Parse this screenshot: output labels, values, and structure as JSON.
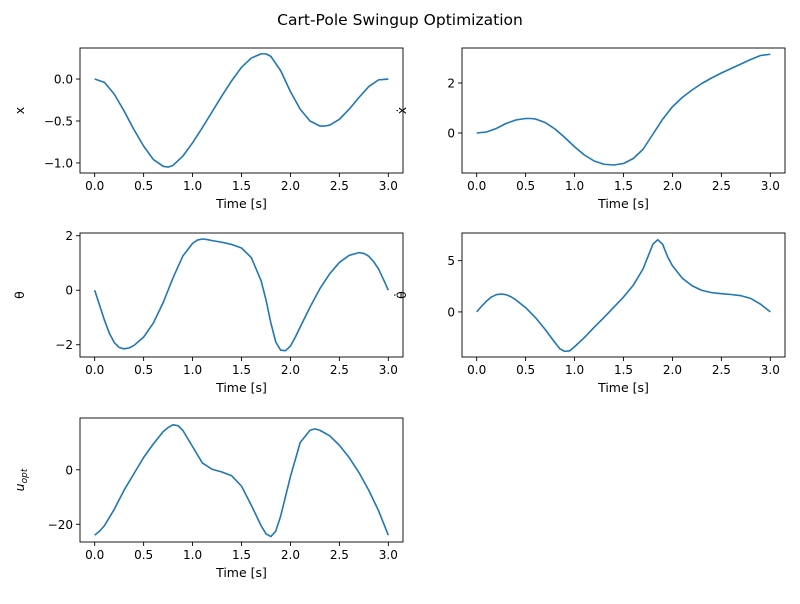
{
  "figure_title": "Cart-Pole Swingup Optimization",
  "colors": {
    "line": "#1f77b4",
    "axis": "#000000",
    "background": "#ffffff"
  },
  "chart_data": [
    {
      "id": "x",
      "type": "line",
      "title": "",
      "xlabel": "Time [s]",
      "ylabel": "x",
      "xlim": [
        -0.15,
        3.15
      ],
      "ylim": [
        -1.12,
        0.37
      ],
      "xticks": [
        0.0,
        0.5,
        1.0,
        1.5,
        2.0,
        2.5,
        3.0
      ],
      "xtick_labels": [
        "0.0",
        "0.5",
        "1.0",
        "1.5",
        "2.0",
        "2.5",
        "3.0"
      ],
      "yticks": [
        0.0,
        -0.5,
        -1.0
      ],
      "ytick_labels": [
        "0.0",
        "−0.5",
        "−1.0"
      ],
      "grid": false,
      "series": [
        {
          "x": [
            0.0,
            0.1,
            0.2,
            0.3,
            0.4,
            0.5,
            0.6,
            0.7,
            0.75,
            0.8,
            0.9,
            1.0,
            1.1,
            1.2,
            1.3,
            1.4,
            1.5,
            1.6,
            1.7,
            1.75,
            1.8,
            1.9,
            2.0,
            2.1,
            2.2,
            2.3,
            2.35,
            2.4,
            2.5,
            2.6,
            2.7,
            2.8,
            2.9,
            3.0
          ],
          "y": [
            0.0,
            -0.04,
            -0.18,
            -0.38,
            -0.6,
            -0.8,
            -0.96,
            -1.04,
            -1.05,
            -1.03,
            -0.92,
            -0.76,
            -0.58,
            -0.39,
            -0.2,
            -0.02,
            0.14,
            0.25,
            0.3,
            0.3,
            0.27,
            0.1,
            -0.15,
            -0.36,
            -0.5,
            -0.56,
            -0.56,
            -0.55,
            -0.48,
            -0.36,
            -0.22,
            -0.09,
            -0.01,
            0.0
          ]
        }
      ]
    },
    {
      "id": "xdot",
      "type": "line",
      "title": "",
      "xlabel": "Time [s]",
      "ylabel": "ẋ",
      "xlim": [
        -0.15,
        3.15
      ],
      "ylim": [
        -1.6,
        3.4
      ],
      "xticks": [
        0.0,
        0.5,
        1.0,
        1.5,
        2.0,
        2.5,
        3.0
      ],
      "xtick_labels": [
        "0.0",
        "0.5",
        "1.0",
        "1.5",
        "2.0",
        "2.5",
        "3.0"
      ],
      "yticks": [
        0,
        2
      ],
      "ytick_labels": [
        "0",
        "2"
      ],
      "grid": false,
      "series": [
        {
          "x": [
            0.0,
            0.1,
            0.2,
            0.3,
            0.4,
            0.5,
            0.55,
            0.6,
            0.7,
            0.8,
            0.9,
            1.0,
            1.1,
            1.2,
            1.3,
            1.4,
            1.5,
            1.6,
            1.7,
            1.8,
            1.9,
            2.0,
            2.1,
            2.2,
            2.3,
            2.4,
            2.5,
            2.6,
            2.7,
            2.8,
            2.9,
            3.0
          ],
          "y": [
            0.0,
            0.04,
            0.18,
            0.38,
            0.52,
            0.58,
            0.58,
            0.56,
            0.42,
            0.16,
            -0.18,
            -0.55,
            -0.88,
            -1.12,
            -1.25,
            -1.28,
            -1.22,
            -1.02,
            -0.65,
            -0.05,
            0.55,
            1.05,
            1.42,
            1.72,
            1.98,
            2.2,
            2.4,
            2.58,
            2.76,
            2.94,
            3.1,
            3.15
          ]
        }
      ]
    },
    {
      "id": "theta",
      "type": "line",
      "title": "",
      "xlabel": "Time [s]",
      "ylabel": "θ",
      "xlim": [
        -0.15,
        3.15
      ],
      "ylim": [
        -2.45,
        2.1
      ],
      "xticks": [
        0.0,
        0.5,
        1.0,
        1.5,
        2.0,
        2.5,
        3.0
      ],
      "xtick_labels": [
        "0.0",
        "0.5",
        "1.0",
        "1.5",
        "2.0",
        "2.5",
        "3.0"
      ],
      "yticks": [
        2,
        0,
        -2
      ],
      "ytick_labels": [
        "2",
        "0",
        "−2"
      ],
      "grid": false,
      "series": [
        {
          "x": [
            0.0,
            0.05,
            0.1,
            0.15,
            0.2,
            0.25,
            0.3,
            0.35,
            0.4,
            0.5,
            0.6,
            0.7,
            0.8,
            0.9,
            1.0,
            1.05,
            1.1,
            1.15,
            1.2,
            1.3,
            1.4,
            1.5,
            1.6,
            1.7,
            1.75,
            1.8,
            1.85,
            1.9,
            1.95,
            2.0,
            2.05,
            2.1,
            2.2,
            2.3,
            2.4,
            2.5,
            2.6,
            2.7,
            2.75,
            2.8,
            2.85,
            2.9,
            2.95,
            3.0
          ],
          "y": [
            0.0,
            -0.55,
            -1.1,
            -1.58,
            -1.92,
            -2.1,
            -2.15,
            -2.12,
            -2.03,
            -1.72,
            -1.2,
            -0.45,
            0.45,
            1.25,
            1.72,
            1.84,
            1.88,
            1.86,
            1.82,
            1.76,
            1.68,
            1.55,
            1.2,
            0.35,
            -0.35,
            -1.2,
            -1.9,
            -2.2,
            -2.22,
            -2.05,
            -1.72,
            -1.35,
            -0.62,
            0.05,
            0.6,
            1.02,
            1.28,
            1.38,
            1.35,
            1.25,
            1.05,
            0.78,
            0.4,
            0.0
          ]
        }
      ]
    },
    {
      "id": "thetadot",
      "type": "line",
      "title": "",
      "xlabel": "Time [s]",
      "ylabel": "θ̇",
      "xlim": [
        -0.15,
        3.15
      ],
      "ylim": [
        -4.4,
        7.7
      ],
      "xticks": [
        0.0,
        0.5,
        1.0,
        1.5,
        2.0,
        2.5,
        3.0
      ],
      "xtick_labels": [
        "0.0",
        "0.5",
        "1.0",
        "1.5",
        "2.0",
        "2.5",
        "3.0"
      ],
      "yticks": [
        5,
        0
      ],
      "ytick_labels": [
        "5",
        "0"
      ],
      "grid": false,
      "series": [
        {
          "x": [
            0.0,
            0.05,
            0.1,
            0.15,
            0.2,
            0.25,
            0.3,
            0.35,
            0.4,
            0.5,
            0.6,
            0.7,
            0.8,
            0.85,
            0.9,
            0.95,
            1.0,
            1.1,
            1.2,
            1.3,
            1.4,
            1.5,
            1.6,
            1.7,
            1.75,
            1.8,
            1.85,
            1.9,
            1.95,
            2.0,
            2.1,
            2.2,
            2.3,
            2.4,
            2.5,
            2.6,
            2.7,
            2.8,
            2.9,
            3.0
          ],
          "y": [
            0.0,
            0.55,
            1.05,
            1.45,
            1.68,
            1.75,
            1.68,
            1.48,
            1.18,
            0.42,
            -0.55,
            -1.72,
            -3.0,
            -3.6,
            -3.85,
            -3.8,
            -3.4,
            -2.5,
            -1.5,
            -0.55,
            0.45,
            1.45,
            2.6,
            4.2,
            5.4,
            6.6,
            7.05,
            6.6,
            5.4,
            4.5,
            3.3,
            2.55,
            2.1,
            1.88,
            1.78,
            1.7,
            1.58,
            1.32,
            0.75,
            0.0
          ]
        }
      ]
    },
    {
      "id": "u_opt",
      "type": "line",
      "title": "",
      "xlabel": "Time [s]",
      "ylabel": "u",
      "ylabel_subscript": "opt",
      "xlim": [
        -0.15,
        3.15
      ],
      "ylim": [
        -26.5,
        19
      ],
      "xticks": [
        0.0,
        0.5,
        1.0,
        1.5,
        2.0,
        2.5,
        3.0
      ],
      "xtick_labels": [
        "0.0",
        "0.5",
        "1.0",
        "1.5",
        "2.0",
        "2.5",
        "3.0"
      ],
      "yticks": [
        0,
        -20
      ],
      "ytick_labels": [
        "0",
        "−20"
      ],
      "grid": false,
      "series": [
        {
          "x": [
            0.0,
            0.05,
            0.1,
            0.2,
            0.3,
            0.4,
            0.5,
            0.6,
            0.7,
            0.75,
            0.8,
            0.85,
            0.9,
            1.0,
            1.1,
            1.2,
            1.3,
            1.4,
            1.5,
            1.6,
            1.7,
            1.75,
            1.8,
            1.85,
            1.9,
            2.0,
            2.1,
            2.2,
            2.25,
            2.3,
            2.4,
            2.5,
            2.6,
            2.7,
            2.8,
            2.9,
            2.95,
            3.0
          ],
          "y": [
            -24,
            -22.5,
            -20.5,
            -14.5,
            -7.5,
            -1.5,
            4.5,
            9.5,
            14,
            15.5,
            16.5,
            16.2,
            14.5,
            8.5,
            2.5,
            0.2,
            -0.8,
            -2.2,
            -6,
            -13,
            -20.5,
            -23.5,
            -24.5,
            -22.5,
            -17,
            -2.5,
            10,
            14.5,
            15,
            14.5,
            12.5,
            9,
            4.5,
            -1,
            -7.5,
            -15,
            -19.5,
            -24
          ]
        }
      ]
    }
  ]
}
